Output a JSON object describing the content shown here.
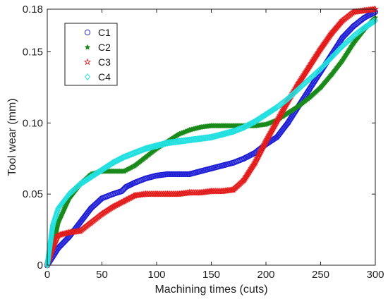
{
  "chart_data": {
    "type": "scatter",
    "title": "",
    "xlabel": "Machining times (cuts)",
    "ylabel": "Tool wear (mm)",
    "xlim": [
      0,
      300
    ],
    "ylim": [
      0,
      0.18
    ],
    "xticks": [
      0,
      50,
      100,
      150,
      200,
      250,
      300
    ],
    "xtick_labels": [
      "0",
      "50",
      "100",
      "150",
      "200",
      "250",
      "300"
    ],
    "yticks": [
      0,
      0.05,
      0.1,
      0.15,
      0.18
    ],
    "ytick_labels": [
      "0",
      "0.05",
      "0.10",
      "0.15",
      "0.18"
    ],
    "grid": false,
    "legend_position": "top-left",
    "series": [
      {
        "name": "C1",
        "color": "#1f1fd6",
        "marker": "circle",
        "x": [
          0,
          5,
          10,
          20,
          30,
          40,
          50,
          60,
          68,
          72,
          80,
          90,
          100,
          110,
          120,
          130,
          140,
          150,
          160,
          170,
          180,
          190,
          200,
          210,
          220,
          230,
          240,
          250,
          260,
          270,
          280,
          290,
          300
        ],
        "y": [
          0.0,
          0.006,
          0.012,
          0.02,
          0.03,
          0.04,
          0.047,
          0.05,
          0.052,
          0.055,
          0.058,
          0.061,
          0.063,
          0.064,
          0.064,
          0.064,
          0.066,
          0.068,
          0.07,
          0.072,
          0.075,
          0.079,
          0.085,
          0.09,
          0.1,
          0.112,
          0.124,
          0.136,
          0.148,
          0.16,
          0.168,
          0.174,
          0.178
        ]
      },
      {
        "name": "C2",
        "color": "#1a8a1a",
        "marker": "star",
        "x": [
          0,
          5,
          10,
          20,
          30,
          40,
          50,
          60,
          70,
          80,
          90,
          100,
          110,
          120,
          130,
          140,
          150,
          160,
          170,
          180,
          190,
          200,
          210,
          220,
          230,
          240,
          250,
          260,
          270,
          280,
          290,
          300
        ],
        "y": [
          0.0,
          0.012,
          0.03,
          0.047,
          0.057,
          0.064,
          0.066,
          0.066,
          0.066,
          0.07,
          0.076,
          0.082,
          0.087,
          0.092,
          0.095,
          0.097,
          0.098,
          0.098,
          0.098,
          0.098,
          0.098,
          0.099,
          0.102,
          0.107,
          0.112,
          0.118,
          0.125,
          0.134,
          0.144,
          0.156,
          0.166,
          0.174
        ]
      },
      {
        "name": "C3",
        "color": "#e21c1c",
        "marker": "pentagram",
        "x": [
          0,
          5,
          10,
          20,
          30,
          40,
          50,
          60,
          70,
          80,
          90,
          100,
          110,
          120,
          130,
          140,
          150,
          160,
          170,
          180,
          190,
          200,
          210,
          220,
          230,
          240,
          250,
          260,
          270,
          280,
          290,
          300
        ],
        "y": [
          0.0,
          0.012,
          0.021,
          0.023,
          0.024,
          0.03,
          0.036,
          0.041,
          0.045,
          0.049,
          0.05,
          0.05,
          0.05,
          0.05,
          0.051,
          0.051,
          0.052,
          0.052,
          0.053,
          0.06,
          0.072,
          0.087,
          0.101,
          0.115,
          0.128,
          0.14,
          0.152,
          0.163,
          0.172,
          0.178,
          0.179,
          0.18
        ]
      },
      {
        "name": "C4",
        "color": "#22e0e0",
        "marker": "diamond",
        "x": [
          0,
          5,
          10,
          20,
          30,
          40,
          50,
          60,
          70,
          80,
          90,
          100,
          110,
          120,
          130,
          140,
          150,
          160,
          170,
          180,
          190,
          200,
          210,
          220,
          230,
          240,
          250,
          260,
          270,
          280,
          290,
          300
        ],
        "y": [
          0.0,
          0.028,
          0.04,
          0.05,
          0.057,
          0.062,
          0.067,
          0.072,
          0.076,
          0.079,
          0.082,
          0.084,
          0.086,
          0.087,
          0.088,
          0.089,
          0.09,
          0.092,
          0.094,
          0.097,
          0.101,
          0.106,
          0.111,
          0.117,
          0.124,
          0.131,
          0.138,
          0.146,
          0.154,
          0.161,
          0.167,
          0.172
        ]
      }
    ]
  }
}
